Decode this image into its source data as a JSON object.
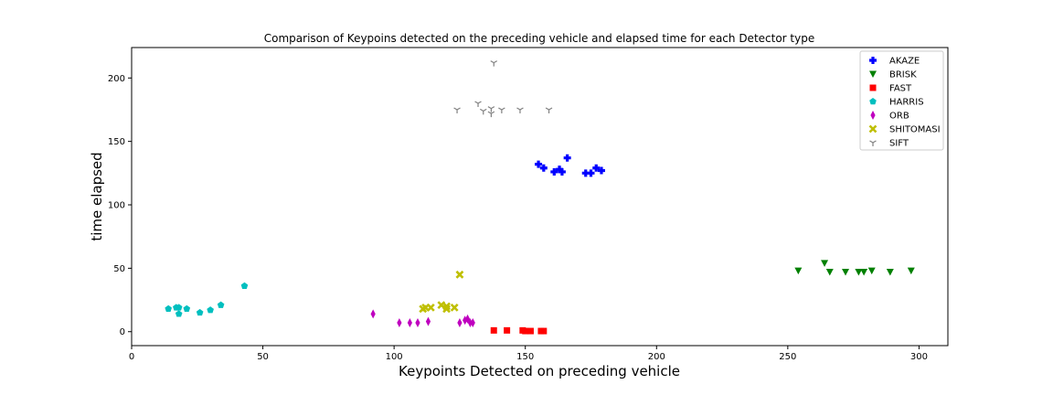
{
  "chart_data": {
    "type": "scatter",
    "title": "Comparison of Keypoins detected on the preceding vehicle and elapsed time for each Detector type",
    "xlabel": "Keypoints Detected on preceding vehicle",
    "ylabel": "time elapsed",
    "xlim": [
      0,
      311
    ],
    "ylim": [
      -11,
      224
    ],
    "xticks": [
      0,
      50,
      100,
      150,
      200,
      250,
      300
    ],
    "yticks": [
      0,
      50,
      100,
      150,
      200
    ],
    "grid": false,
    "legend_position": "top-right",
    "series": [
      {
        "name": "AKAZE",
        "color": "#0000ff",
        "marker": "plus",
        "x": [
          155,
          157,
          161,
          163,
          164,
          166,
          173,
          175,
          177,
          179
        ],
        "y": [
          132,
          129,
          126,
          128,
          126,
          137,
          125,
          125,
          129,
          127
        ]
      },
      {
        "name": "BRISK",
        "color": "#008000",
        "marker": "triangle_down",
        "x": [
          254,
          264,
          266,
          272,
          277,
          279,
          282,
          289,
          297
        ],
        "y": [
          48,
          54,
          47,
          47,
          47,
          47,
          48,
          47,
          48
        ]
      },
      {
        "name": "FAST",
        "color": "#ff0000",
        "marker": "square",
        "x": [
          138,
          143,
          149,
          150,
          152,
          156,
          157
        ],
        "y": [
          1,
          1,
          1,
          0.5,
          0.5,
          0.5,
          0.5
        ]
      },
      {
        "name": "HARRIS",
        "color": "#00bfbf",
        "marker": "pentagon",
        "x": [
          14,
          17,
          18,
          18,
          21,
          26,
          30,
          34,
          43
        ],
        "y": [
          18,
          19,
          19,
          14,
          18,
          15,
          17,
          21,
          36
        ]
      },
      {
        "name": "ORB",
        "color": "#bf00bf",
        "marker": "thin_diamond",
        "x": [
          92,
          102,
          106,
          109,
          113,
          125,
          127,
          128,
          129,
          130
        ],
        "y": [
          14,
          7,
          7,
          7,
          8,
          7,
          9,
          10,
          7,
          7
        ]
      },
      {
        "name": "SHITOMASI",
        "color": "#bfbf00",
        "marker": "x",
        "x": [
          111,
          112,
          114,
          118,
          120,
          120,
          123,
          125
        ],
        "y": [
          18,
          19,
          19,
          21,
          20,
          18,
          19,
          45
        ]
      },
      {
        "name": "SIFT",
        "color": "#808080",
        "marker": "tri_down",
        "x": [
          124,
          132,
          134,
          137,
          137,
          138,
          141,
          148,
          159
        ],
        "y": [
          175,
          180,
          174,
          176,
          172,
          212,
          175,
          175,
          175
        ]
      }
    ]
  }
}
